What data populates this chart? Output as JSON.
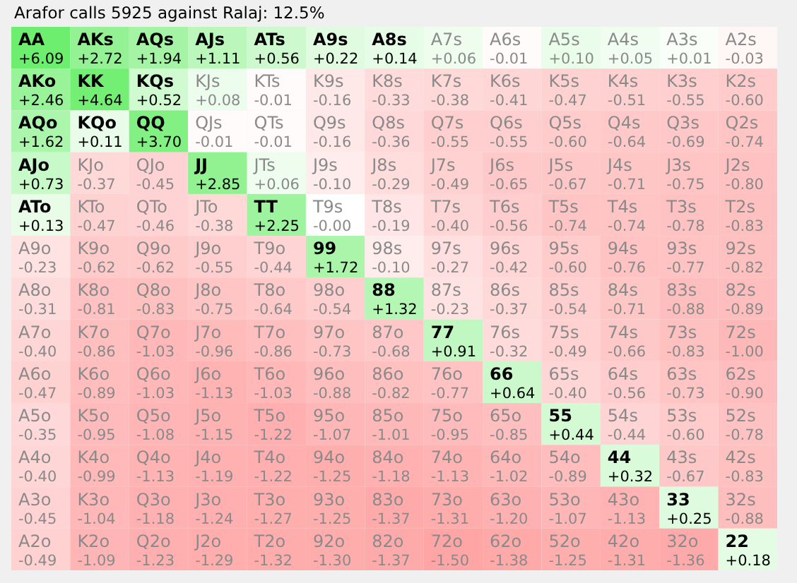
{
  "chart_data": {
    "type": "heatmap",
    "title": "Arafor calls 5925 against Ralaj: 12.5%",
    "categories": [
      null,
      null,
      null,
      null,
      null,
      null,
      null,
      null,
      null,
      null,
      null,
      null,
      null
    ],
    "y_categories": [
      null,
      null,
      null,
      null,
      null,
      null,
      null,
      null,
      null,
      null,
      null,
      null,
      null
    ],
    "cells": [
      [
        6.09,
        2.72,
        1.94,
        1.11,
        0.56,
        0.22,
        0.14,
        0.06,
        -0.01,
        0.1,
        0.05,
        0.01,
        -0.03
      ],
      [
        2.46,
        4.64,
        0.52,
        0.08,
        -0.01,
        -0.16,
        -0.33,
        -0.38,
        -0.41,
        -0.47,
        -0.51,
        -0.55,
        -0.6
      ],
      [
        1.62,
        0.11,
        3.7,
        -0.01,
        -0.01,
        -0.16,
        -0.36,
        -0.55,
        -0.55,
        -0.6,
        -0.64,
        -0.69,
        -0.74
      ],
      [
        0.73,
        -0.37,
        -0.45,
        2.85,
        0.06,
        -0.1,
        -0.29,
        -0.49,
        -0.65,
        -0.67,
        -0.71,
        -0.75,
        -0.8
      ],
      [
        0.13,
        -0.47,
        -0.46,
        -0.38,
        2.25,
        -0.0,
        -0.19,
        -0.4,
        -0.56,
        -0.74,
        -0.74,
        -0.78,
        -0.83
      ],
      [
        -0.23,
        -0.62,
        -0.62,
        -0.55,
        -0.44,
        1.72,
        -0.1,
        -0.27,
        -0.42,
        -0.6,
        -0.76,
        -0.77,
        -0.82
      ],
      [
        -0.31,
        -0.81,
        -0.83,
        -0.75,
        -0.64,
        -0.54,
        1.32,
        -0.23,
        -0.37,
        -0.54,
        -0.71,
        -0.88,
        -0.89
      ],
      [
        -0.4,
        -0.86,
        -1.03,
        -0.96,
        -0.86,
        -0.73,
        -0.68,
        0.91,
        -0.32,
        -0.49,
        -0.66,
        -0.83,
        -1.0
      ],
      [
        -0.47,
        -0.89,
        -1.03,
        -1.13,
        -1.03,
        -0.88,
        -0.82,
        -0.77,
        0.64,
        -0.4,
        -0.56,
        -0.73,
        -0.9
      ],
      [
        -0.35,
        -0.95,
        -1.08,
        -1.15,
        -1.22,
        -1.07,
        -1.01,
        -0.95,
        -0.85,
        0.44,
        -0.44,
        -0.6,
        -0.78
      ],
      [
        -0.4,
        -0.99,
        -1.13,
        -1.19,
        -1.22,
        -1.25,
        -1.18,
        -1.13,
        -1.02,
        -0.89,
        0.32,
        -0.67,
        -0.83
      ],
      [
        -0.45,
        -1.04,
        -1.18,
        -1.24,
        -1.27,
        -1.25,
        -1.37,
        -1.31,
        -1.2,
        -1.07,
        -1.13,
        0.25,
        -0.88
      ],
      [
        -0.49,
        -1.09,
        -1.23,
        -1.29,
        -1.32,
        -1.3,
        -1.37,
        -1.5,
        -1.38,
        -1.25,
        -1.31,
        -1.36,
        0.18
      ]
    ],
    "cell_labels": [
      [
        "+6.09",
        "+2.72",
        "+1.94",
        "+1.11",
        "+0.56",
        "+0.22",
        "+0.14",
        "+0.06",
        "-0.01",
        "+0.10",
        "+0.05",
        "+0.01",
        "-0.03"
      ],
      [
        "+2.46",
        "+4.64",
        "+0.52",
        "+0.08",
        "-0.01",
        "-0.16",
        "-0.33",
        "-0.38",
        "-0.41",
        "-0.47",
        "-0.51",
        "-0.55",
        "-0.60"
      ],
      [
        "+1.62",
        "+0.11",
        "+3.70",
        "-0.01",
        "-0.01",
        "-0.16",
        "-0.36",
        "-0.55",
        "-0.55",
        "-0.60",
        "-0.64",
        "-0.69",
        "-0.74"
      ],
      [
        "+0.73",
        "-0.37",
        "-0.45",
        "+2.85",
        "+0.06",
        "-0.10",
        "-0.29",
        "-0.49",
        "-0.65",
        "-0.67",
        "-0.71",
        "-0.75",
        "-0.80"
      ],
      [
        "+0.13",
        "-0.47",
        "-0.46",
        "-0.38",
        "+2.25",
        "-0.00",
        "-0.19",
        "-0.40",
        "-0.56",
        "-0.74",
        "-0.74",
        "-0.78",
        "-0.83"
      ],
      [
        "-0.23",
        "-0.62",
        "-0.62",
        "-0.55",
        "-0.44",
        "+1.72",
        "-0.10",
        "-0.27",
        "-0.42",
        "-0.60",
        "-0.76",
        "-0.77",
        "-0.82"
      ],
      [
        "-0.31",
        "-0.81",
        "-0.83",
        "-0.75",
        "-0.64",
        "-0.54",
        "+1.32",
        "-0.23",
        "-0.37",
        "-0.54",
        "-0.71",
        "-0.88",
        "-0.89"
      ],
      [
        "-0.40",
        "-0.86",
        "-1.03",
        "-0.96",
        "-0.86",
        "-0.73",
        "-0.68",
        "+0.91",
        "-0.32",
        "-0.49",
        "-0.66",
        "-0.83",
        "-1.00"
      ],
      [
        "-0.47",
        "-0.89",
        "-1.03",
        "-1.13",
        "-1.03",
        "-0.88",
        "-0.82",
        "-0.77",
        "+0.64",
        "-0.40",
        "-0.56",
        "-0.73",
        "-0.90"
      ],
      [
        "-0.35",
        "-0.95",
        "-1.08",
        "-1.15",
        "-1.22",
        "-1.07",
        "-1.01",
        "-0.95",
        "-0.85",
        "+0.44",
        "-0.44",
        "-0.60",
        "-0.78"
      ],
      [
        "-0.40",
        "-0.99",
        "-1.13",
        "-1.19",
        "-1.22",
        "-1.25",
        "-1.18",
        "-1.13",
        "-1.02",
        "-0.89",
        "+0.32",
        "-0.67",
        "-0.83"
      ],
      [
        "-0.45",
        "-1.04",
        "-1.18",
        "-1.24",
        "-1.27",
        "-1.25",
        "-1.37",
        "-1.31",
        "-1.20",
        "-1.07",
        "-1.13",
        "+0.25",
        "-0.88"
      ],
      [
        "-0.49",
        "-1.09",
        "-1.23",
        "-1.29",
        "-1.32",
        "-1.30",
        "-1.37",
        "-1.50",
        "-1.38",
        "-1.25",
        "-1.31",
        "-1.36",
        "+0.18"
      ]
    ],
    "annotations": [
      "AA",
      "AKs",
      "AQs",
      "AJs",
      "ATs",
      "A9s",
      "A8s",
      "A7s",
      "A6s",
      "A5s",
      "A4s",
      "A3s",
      "A2s",
      "AKo",
      "KK",
      "KQs",
      "KJs",
      "KTs",
      "K9s",
      "K8s",
      "K7s",
      "K6s",
      "K5s",
      "K4s",
      "K3s",
      "K2s",
      "AQo",
      "KQo",
      "QQ",
      "QJs",
      "QTs",
      "Q9s",
      "Q8s",
      "Q7s",
      "Q6s",
      "Q5s",
      "Q4s",
      "Q3s",
      "Q2s",
      "AJo",
      "KJo",
      "QJo",
      "JJ",
      "JTs",
      "J9s",
      "J8s",
      "J7s",
      "J6s",
      "J5s",
      "J4s",
      "J3s",
      "J2s",
      "ATo",
      "KTo",
      "QTo",
      "JTo",
      "TT",
      "T9s",
      "T8s",
      "T7s",
      "T6s",
      "T5s",
      "T4s",
      "T3s",
      "T2s",
      "A9o",
      "K9o",
      "Q9o",
      "J9o",
      "T9o",
      "99",
      "98s",
      "97s",
      "96s",
      "95s",
      "94s",
      "93s",
      "92s",
      "A8o",
      "K8o",
      "Q8o",
      "J8o",
      "T8o",
      "98o",
      "88",
      "87s",
      "86s",
      "85s",
      "84s",
      "83s",
      "82s",
      "A7o",
      "K7o",
      "Q7o",
      "J7o",
      "T7o",
      "97o",
      "87o",
      "77",
      "76s",
      "75s",
      "74s",
      "73s",
      "72s",
      "A6o",
      "K6o",
      "Q6o",
      "J6o",
      "T6o",
      "96o",
      "86o",
      "76o",
      "66",
      "65s",
      "64s",
      "63s",
      "62s",
      "A5o",
      "K5o",
      "Q5o",
      "J5o",
      "T5o",
      "95o",
      "85o",
      "75o",
      "65o",
      "55",
      "54s",
      "53s",
      "52s",
      "A4o",
      "K4o",
      "Q4o",
      "J4o",
      "T4o",
      "94o",
      "84o",
      "74o",
      "64o",
      "54o",
      "44",
      "43s",
      "42s",
      "A3o",
      "K3o",
      "Q3o",
      "J3o",
      "T3o",
      "93o",
      "83o",
      "73o",
      "63o",
      "53o",
      "43o",
      "33",
      "32s",
      "A2o",
      "K2o",
      "Q2o",
      "J2o",
      "T2o",
      "92o",
      "82o",
      "72o",
      "62o",
      "52o",
      "42o",
      "32o",
      "22"
    ]
  }
}
